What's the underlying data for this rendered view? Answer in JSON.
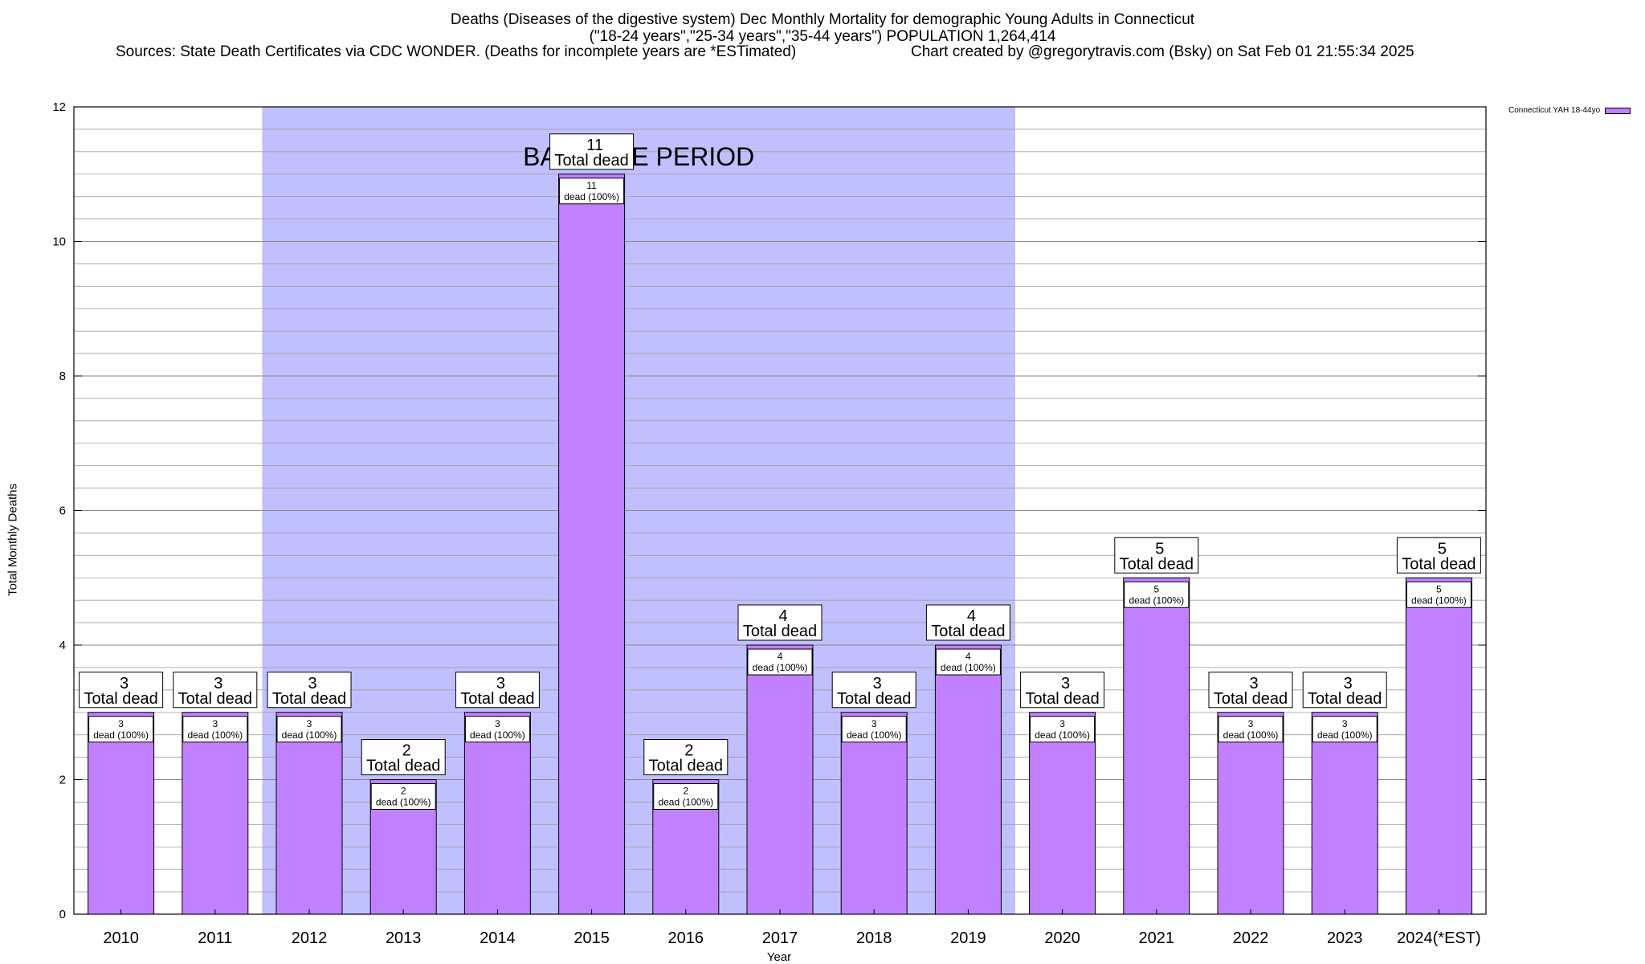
{
  "chart_data": {
    "type": "bar",
    "title": "Deaths (Diseases of the digestive system) Dec Monthly Mortality for demographic Young Adults in Connecticut",
    "subtitle": "(\"18-24 years\",\"25-34 years\",\"35-44 years\") POPULATION 1,264,414",
    "sources": "Sources: State Death Certificates via CDC WONDER. (Deaths for incomplete years are *ESTimated)",
    "credit": "Chart created by @gregorytravis.com (Bsky) on Sat Feb 01 21:55:34 2025",
    "xlabel": "Year",
    "ylabel": "Total Monthly Deaths",
    "ylim": [
      0,
      12
    ],
    "yticks": [
      0,
      2,
      4,
      6,
      8,
      10,
      12
    ],
    "grid": true,
    "legend_position": "top-right",
    "categories": [
      "2010",
      "2011",
      "2012",
      "2013",
      "2014",
      "2015",
      "2016",
      "2017",
      "2018",
      "2019",
      "2020",
      "2021",
      "2022",
      "2023",
      "2024(*EST)"
    ],
    "series": [
      {
        "name": "Connecticut YAH 18-44yo",
        "color": "#c080ff",
        "values": [
          3,
          3,
          3,
          2,
          3,
          11,
          2,
          4,
          3,
          4,
          3,
          5,
          3,
          3,
          5
        ]
      }
    ],
    "total_label_suffix": "Total dead",
    "inner_label_suffix": "dead (100%)",
    "baseline": {
      "label": "BASELINE PERIOD",
      "from": "2012",
      "to": "2019",
      "color": "#c0c0ff"
    }
  }
}
